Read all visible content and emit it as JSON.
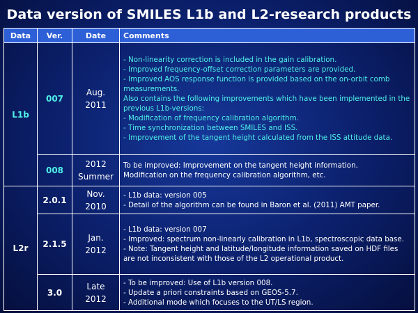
{
  "title": "Data version of SMILES L1b and L2-research products",
  "headers": [
    "Data",
    "Ver.",
    "Date",
    "Comments"
  ],
  "rows": {
    "l1b_007": {
      "data": "L1b",
      "ver": "007",
      "date_line1": "Aug.",
      "date_line2": "2011",
      "comments": [
        "- Non-linearity correction is included in the gain calibration.",
        "- Improved frequency-offset correction parameters are provided.",
        "- Improved AOS response function is provided based on the on-orbit comb measurements.",
        "Also contains the following improvements which have been implemented in the previous L1b-versions:",
        "- Modification of frequency calibration algorithm.",
        "- Time synchronization between SMILES and ISS.",
        "- Improvement of the tangent height calculated from the ISS attitude data."
      ]
    },
    "l1b_008": {
      "ver": "008",
      "date_line1": "2012",
      "date_line2": "Summer",
      "comments": [
        "To be improved:  Improvement on the tangent height information.",
        "Modification on the frequency calibration algorithm, etc."
      ]
    },
    "l2r_201": {
      "data": "L2r",
      "ver": "2.0.1",
      "date_line1": "Nov.",
      "date_line2": "2010",
      "comments": [
        "- L1b data: version 005",
        "- Detail of the algorithm can be found in Baron et al. (2011) AMT paper."
      ]
    },
    "l2r_215": {
      "ver": "2.1.5",
      "date_line1": "Jan.",
      "date_line2": "2012",
      "comments": [
        "- L1b data: version 007",
        "- Improved: spectrum non-linearly calibration in L1b, spectroscopic data base.",
        "- Note: Tangent height and latitude/longitude information saved on HDF files are not inconsistent with those of the L2 operational product."
      ]
    },
    "l2r_30": {
      "ver": "3.0",
      "date_line1": "Late",
      "date_line2": "2012",
      "comments": [
        "- To be improved: Use of L1b version 008.",
        "- Update a priori constraints based on GEOS-5.7.",
        "- Additional mode which focuses to the UT/LS region."
      ]
    }
  }
}
